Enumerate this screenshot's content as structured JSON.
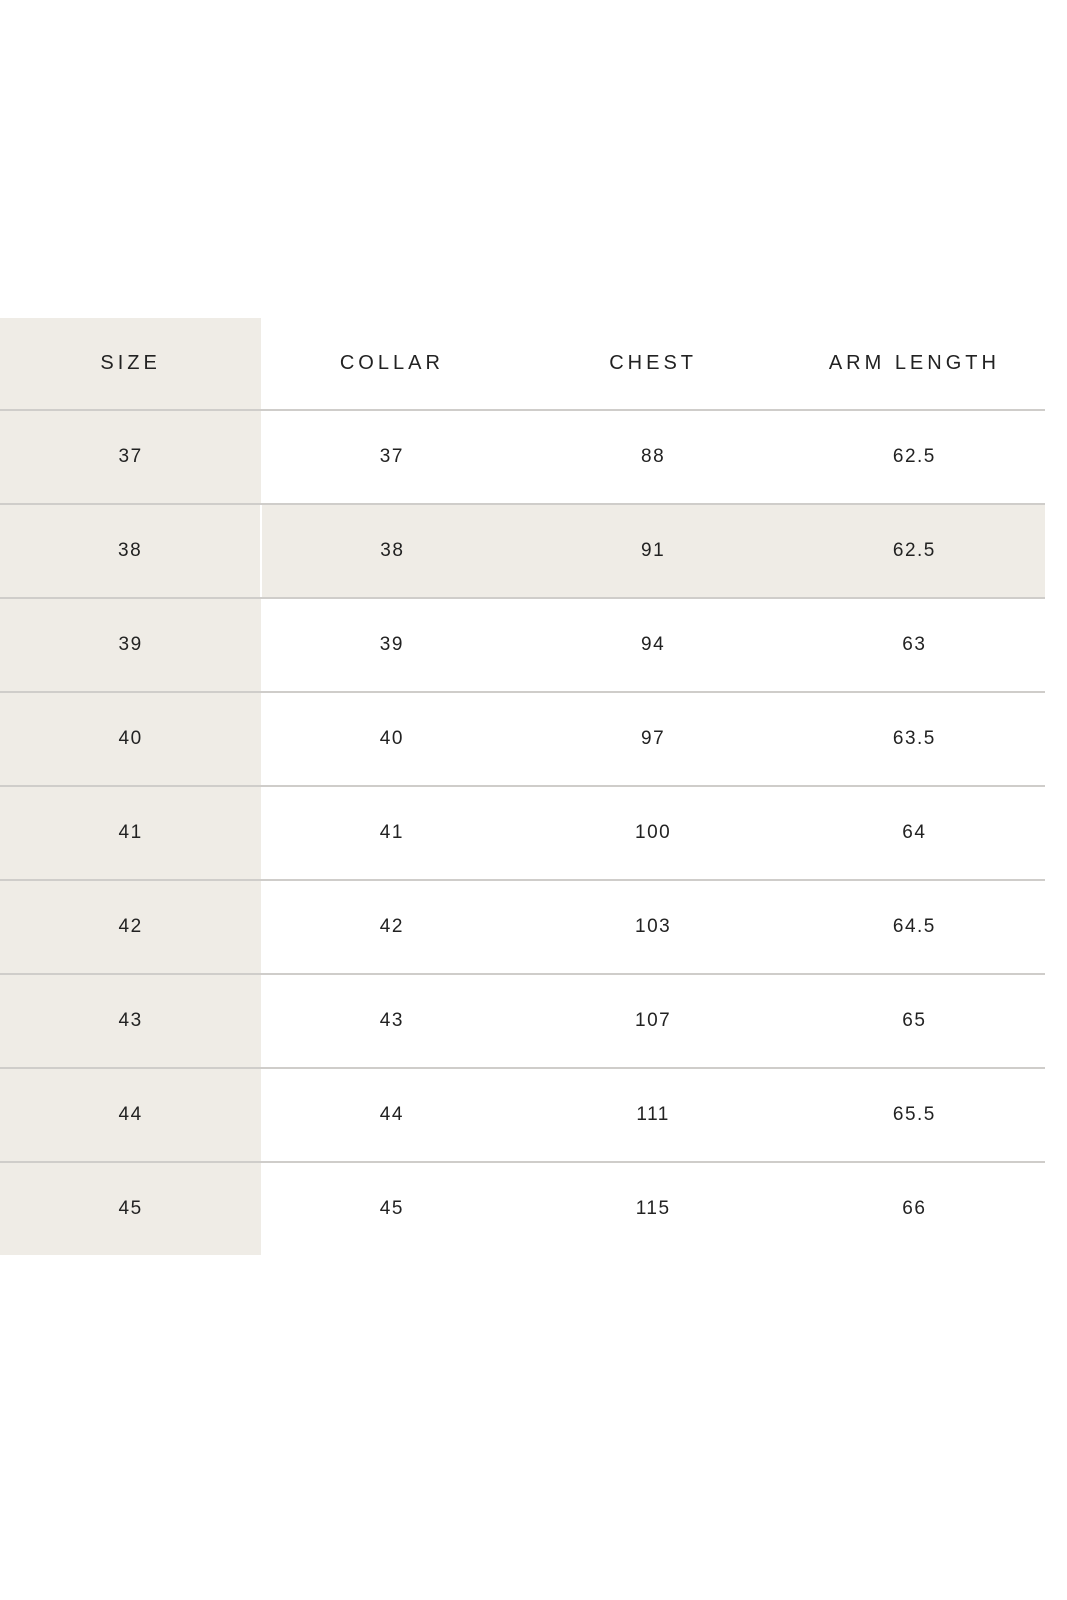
{
  "headers": [
    "SIZE",
    "COLLAR",
    "CHEST",
    "ARM LENGTH"
  ],
  "rows": [
    [
      "37",
      "37",
      "88",
      "62.5"
    ],
    [
      "38",
      "38",
      "91",
      "62.5"
    ],
    [
      "39",
      "39",
      "94",
      "63"
    ],
    [
      "40",
      "40",
      "97",
      "63.5"
    ],
    [
      "41",
      "41",
      "100",
      "64"
    ],
    [
      "42",
      "42",
      "103",
      "64.5"
    ],
    [
      "43",
      "43",
      "107",
      "65"
    ],
    [
      "44",
      "44",
      "111",
      "65.5"
    ],
    [
      "45",
      "45",
      "115",
      "66"
    ]
  ],
  "highlighted_row": 1,
  "colors": {
    "shade": "#efece6",
    "divider": "#cfcdca",
    "text": "#222222"
  }
}
